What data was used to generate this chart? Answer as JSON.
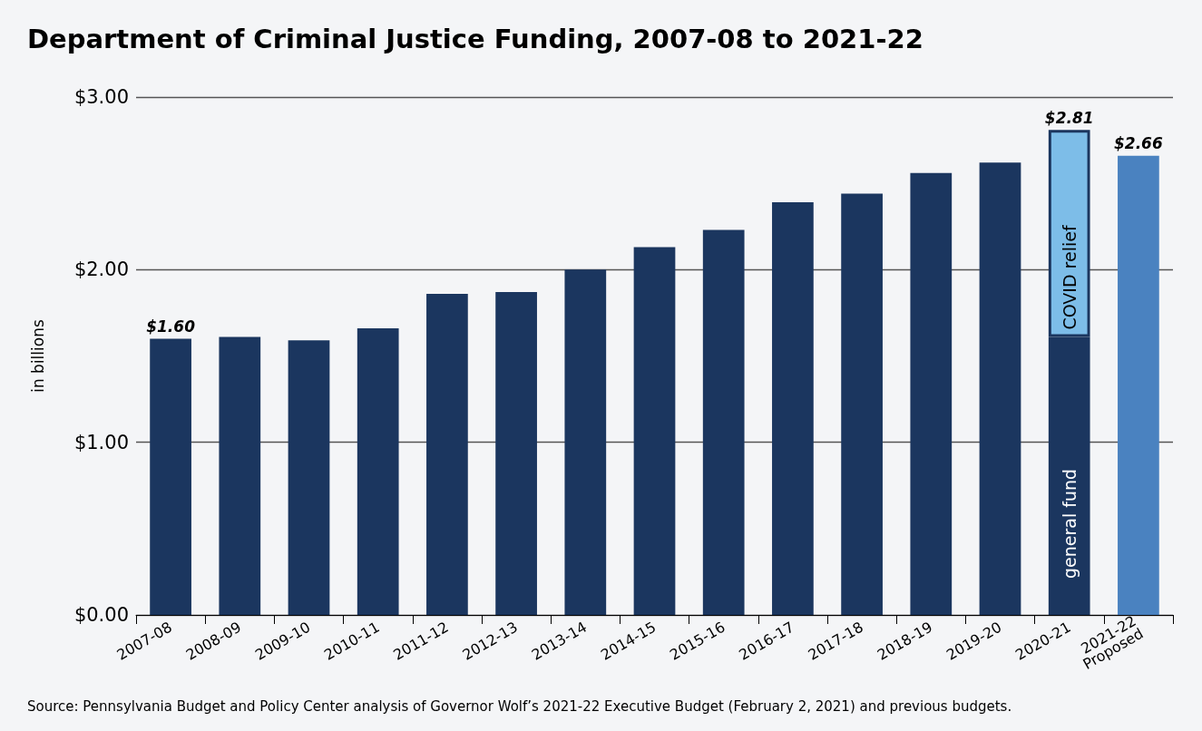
{
  "chart_data": {
    "type": "bar",
    "title": "Department of Criminal Justice Funding, 2007-08 to 2021-22",
    "ylabel": "in billions",
    "categories": [
      "2007-08",
      "2008-09",
      "2009-10",
      "2010-11",
      "2011-12",
      "2012-13",
      "2013-14",
      "2014-15",
      "2015-16",
      "2016-17",
      "2017-18",
      "2018-19",
      "2019-20",
      "2020-21",
      "2021-22\nProposed"
    ],
    "stacked": true,
    "series": [
      {
        "name": "general fund",
        "color": "#1b365f",
        "colors": [
          "#1b365f",
          "#1b365f",
          "#1b365f",
          "#1b365f",
          "#1b365f",
          "#1b365f",
          "#1b365f",
          "#1b365f",
          "#1b365f",
          "#1b365f",
          "#1b365f",
          "#1b365f",
          "#1b365f",
          "#1b365f",
          "#4a82c0"
        ],
        "values": [
          1.6,
          1.61,
          1.59,
          1.66,
          1.86,
          1.87,
          2.0,
          2.13,
          2.23,
          2.39,
          2.44,
          2.56,
          2.62,
          1.61,
          2.66
        ]
      },
      {
        "name": "COVID relief",
        "color": "#7dbde8",
        "values": [
          null,
          null,
          null,
          null,
          null,
          null,
          null,
          null,
          null,
          null,
          null,
          null,
          null,
          1.2,
          null
        ]
      }
    ],
    "totals": [
      "$1.60",
      null,
      null,
      null,
      null,
      null,
      null,
      null,
      null,
      null,
      null,
      null,
      null,
      "$2.81",
      "$2.66"
    ],
    "ylim": [
      0,
      3
    ],
    "yticks": [
      {
        "value": 0,
        "label": "$0.00"
      },
      {
        "value": 1,
        "label": "$1.00"
      },
      {
        "value": 2,
        "label": "$2.00"
      },
      {
        "value": 3,
        "label": "$3.00"
      }
    ],
    "grid": "y",
    "legend": false,
    "annotations": [
      "Source: Pennsylvania Budget and Policy Center analysis of Governor Wolf’s 2021-22 Executive Budget (February 2, 2021) and previous budgets."
    ]
  }
}
